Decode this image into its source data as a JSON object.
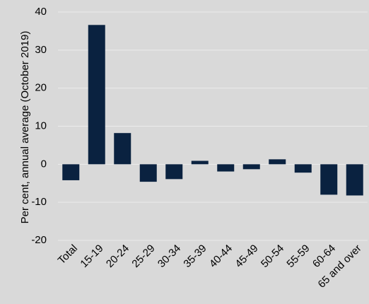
{
  "chart_data": {
    "type": "bar",
    "y_label": "Per cent, annual average (October 2019)",
    "categories": [
      "Total",
      "15-19",
      "20-24",
      "25-29",
      "30-34",
      "35-39",
      "40-44",
      "45-49",
      "50-54",
      "55-59",
      "60-64",
      "65 and over"
    ],
    "values": [
      -4.2,
      36.6,
      8.2,
      -4.6,
      -3.9,
      0.9,
      -1.9,
      -1.3,
      1.3,
      -2.2,
      -8.0,
      -8.2
    ],
    "color": "#0a2240",
    "ylim": [
      -20,
      40
    ],
    "yticks": [
      -20,
      -10,
      0,
      10,
      20,
      30,
      40
    ],
    "grid": true
  }
}
